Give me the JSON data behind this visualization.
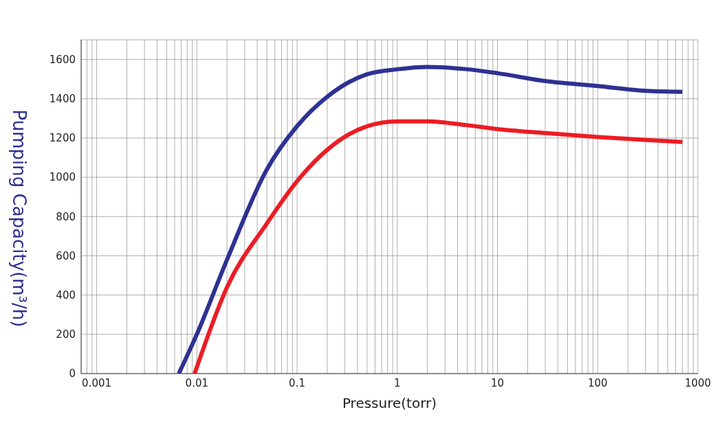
{
  "chart_data": {
    "type": "line",
    "xlabel": "Pressure(torr)",
    "ylabel": "Pumping Capacity(m³/h)",
    "log": "x",
    "grid": true,
    "legend": false,
    "marker": "none",
    "line_style": "solid",
    "xlim": [
      0.0007,
      1000
    ],
    "ylim": [
      0,
      1700
    ],
    "xticks": [
      {
        "value": 0.0008,
        "label": null
      },
      {
        "value": 0.0009,
        "label": null
      },
      0.001,
      {
        "value": 0.002,
        "label": null
      },
      {
        "value": 0.003,
        "label": null
      },
      {
        "value": 0.004,
        "label": null
      },
      {
        "value": 0.005,
        "label": null
      },
      {
        "value": 0.006,
        "label": null
      },
      {
        "value": 0.007,
        "label": null
      },
      {
        "value": 0.008,
        "label": null
      },
      {
        "value": 0.009,
        "label": null
      },
      0.01,
      {
        "value": 0.02,
        "label": null
      },
      {
        "value": 0.03,
        "label": null
      },
      {
        "value": 0.04,
        "label": null
      },
      {
        "value": 0.05,
        "label": null
      },
      {
        "value": 0.06,
        "label": null
      },
      {
        "value": 0.07,
        "label": null
      },
      {
        "value": 0.08,
        "label": null
      },
      {
        "value": 0.09,
        "label": null
      },
      0.1,
      {
        "value": 0.2,
        "label": null
      },
      {
        "value": 0.3,
        "label": null
      },
      {
        "value": 0.4,
        "label": null
      },
      {
        "value": 0.5,
        "label": null
      },
      {
        "value": 0.6,
        "label": null
      },
      {
        "value": 0.7,
        "label": null
      },
      {
        "value": 0.8,
        "label": null
      },
      {
        "value": 0.9,
        "label": null
      },
      1,
      {
        "value": 2,
        "label": null
      },
      {
        "value": 3,
        "label": null
      },
      {
        "value": 4,
        "label": null
      },
      {
        "value": 5,
        "label": null
      },
      {
        "value": 6,
        "label": null
      },
      {
        "value": 7,
        "label": null
      },
      {
        "value": 8,
        "label": null
      },
      {
        "value": 9,
        "label": null
      },
      10,
      {
        "value": 20,
        "label": null
      },
      {
        "value": 30,
        "label": null
      },
      {
        "value": 40,
        "label": null
      },
      {
        "value": 50,
        "label": null
      },
      {
        "value": 60,
        "label": null
      },
      {
        "value": 70,
        "label": null
      },
      {
        "value": 80,
        "label": null
      },
      {
        "value": 90,
        "label": null
      },
      100,
      {
        "value": 200,
        "label": null
      },
      {
        "value": 300,
        "label": null
      },
      {
        "value": 400,
        "label": null
      },
      {
        "value": 500,
        "label": null
      },
      {
        "value": 600,
        "label": null
      },
      {
        "value": 700,
        "label": null
      },
      {
        "value": 800,
        "label": null
      },
      {
        "value": 900,
        "label": null
      },
      1000
    ],
    "yticks": [
      0,
      200,
      400,
      600,
      800,
      1000,
      1200,
      1400,
      1600
    ],
    "series": [
      {
        "color": "#2e3192",
        "x": [
          0.0066,
          0.01,
          0.02,
          0.05,
          0.1,
          0.2,
          0.5,
          1,
          2,
          5,
          10,
          30,
          100,
          300,
          700
        ],
        "values": [
          0,
          200,
          580,
          1040,
          1260,
          1410,
          1525,
          1550,
          1562,
          1550,
          1530,
          1490,
          1465,
          1440,
          1435
        ]
      },
      {
        "color": "#ed1c24",
        "x": [
          0.0095,
          0.02,
          0.05,
          0.1,
          0.2,
          0.5,
          1,
          2,
          5,
          10,
          30,
          100,
          300,
          700
        ],
        "values": [
          0,
          440,
          765,
          980,
          1140,
          1260,
          1285,
          1285,
          1265,
          1245,
          1225,
          1205,
          1190,
          1180
        ]
      }
    ]
  }
}
